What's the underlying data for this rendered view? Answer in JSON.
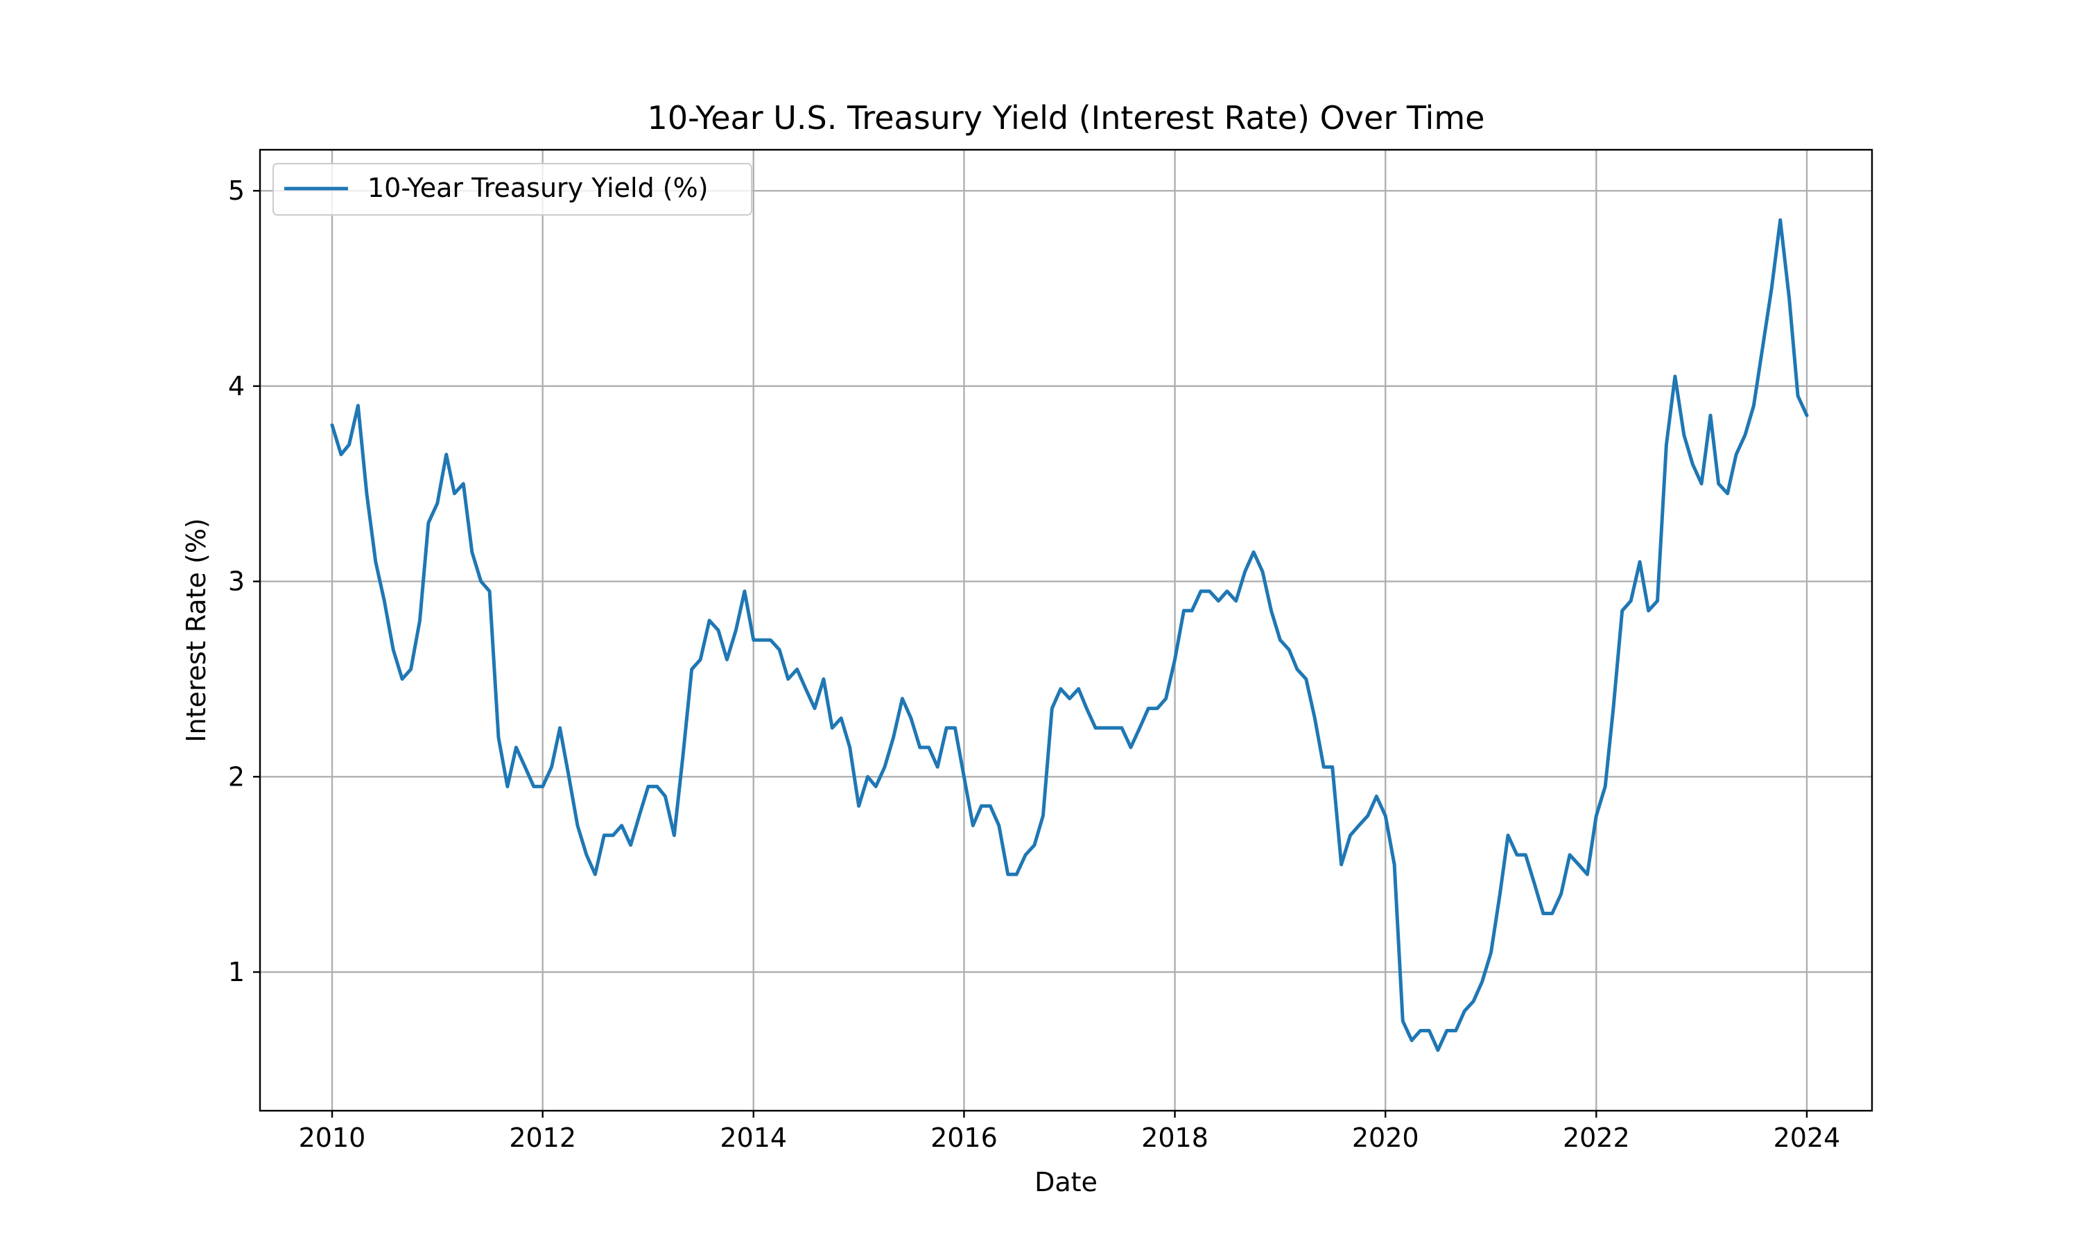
{
  "chart_data": {
    "type": "line",
    "title": "10-Year U.S. Treasury Yield (Interest Rate) Over Time",
    "xlabel": "Date",
    "ylabel": "Interest Rate (%)",
    "x_axis_type": "date",
    "xlim": [
      "2009-04-26",
      "2024-08-14"
    ],
    "ylim": [
      0.29,
      5.21
    ],
    "xticks": [
      "2010",
      "2012",
      "2014",
      "2016",
      "2018",
      "2020",
      "2022",
      "2024"
    ],
    "yticks": [
      "1",
      "2",
      "3",
      "4",
      "5"
    ],
    "grid": true,
    "legend_position": "top-left",
    "series": [
      {
        "name": "10-Year Treasury Yield (%)",
        "color": "#1f77b4",
        "x": [
          "2010-01-01",
          "2010-02-01",
          "2010-03-01",
          "2010-04-01",
          "2010-05-01",
          "2010-06-01",
          "2010-07-01",
          "2010-08-01",
          "2010-09-01",
          "2010-10-01",
          "2010-11-01",
          "2010-12-01",
          "2011-01-01",
          "2011-02-01",
          "2011-03-01",
          "2011-04-01",
          "2011-05-01",
          "2011-06-01",
          "2011-07-01",
          "2011-08-01",
          "2011-09-01",
          "2011-10-01",
          "2011-11-01",
          "2011-12-01",
          "2012-01-01",
          "2012-02-01",
          "2012-03-01",
          "2012-04-01",
          "2012-05-01",
          "2012-06-01",
          "2012-07-01",
          "2012-08-01",
          "2012-09-01",
          "2012-10-01",
          "2012-11-01",
          "2012-12-01",
          "2013-01-01",
          "2013-02-01",
          "2013-03-01",
          "2013-04-01",
          "2013-05-01",
          "2013-06-01",
          "2013-07-01",
          "2013-08-01",
          "2013-09-01",
          "2013-10-01",
          "2013-11-01",
          "2013-12-01",
          "2014-01-01",
          "2014-02-01",
          "2014-03-01",
          "2014-04-01",
          "2014-05-01",
          "2014-06-01",
          "2014-07-01",
          "2014-08-01",
          "2014-09-01",
          "2014-10-01",
          "2014-11-01",
          "2014-12-01",
          "2015-01-01",
          "2015-02-01",
          "2015-03-01",
          "2015-04-01",
          "2015-05-01",
          "2015-06-01",
          "2015-07-01",
          "2015-08-01",
          "2015-09-01",
          "2015-10-01",
          "2015-11-01",
          "2015-12-01",
          "2016-01-01",
          "2016-02-01",
          "2016-03-01",
          "2016-04-01",
          "2016-05-01",
          "2016-06-01",
          "2016-07-01",
          "2016-08-01",
          "2016-09-01",
          "2016-10-01",
          "2016-11-01",
          "2016-12-01",
          "2017-01-01",
          "2017-02-01",
          "2017-03-01",
          "2017-04-01",
          "2017-05-01",
          "2017-06-01",
          "2017-07-01",
          "2017-08-01",
          "2017-09-01",
          "2017-10-01",
          "2017-11-01",
          "2017-12-01",
          "2018-01-01",
          "2018-02-01",
          "2018-03-01",
          "2018-04-01",
          "2018-05-01",
          "2018-06-01",
          "2018-07-01",
          "2018-08-01",
          "2018-09-01",
          "2018-10-01",
          "2018-11-01",
          "2018-12-01",
          "2019-01-01",
          "2019-02-01",
          "2019-03-01",
          "2019-04-01",
          "2019-05-01",
          "2019-06-01",
          "2019-07-01",
          "2019-08-01",
          "2019-09-01",
          "2019-10-01",
          "2019-11-01",
          "2019-12-01",
          "2020-01-01",
          "2020-02-01",
          "2020-03-01",
          "2020-04-01",
          "2020-05-01",
          "2020-06-01",
          "2020-07-01",
          "2020-08-01",
          "2020-09-01",
          "2020-10-01",
          "2020-11-01",
          "2020-12-01",
          "2021-01-01",
          "2021-02-01",
          "2021-03-01",
          "2021-04-01",
          "2021-05-01",
          "2021-06-01",
          "2021-07-01",
          "2021-08-01",
          "2021-09-01",
          "2021-10-01",
          "2021-11-01",
          "2021-12-01",
          "2022-01-01",
          "2022-02-01",
          "2022-03-01",
          "2022-04-01",
          "2022-05-01",
          "2022-06-01",
          "2022-07-01",
          "2022-08-01",
          "2022-09-01",
          "2022-10-01",
          "2022-11-01",
          "2022-12-01",
          "2023-01-01",
          "2023-02-01",
          "2023-03-01",
          "2023-04-01",
          "2023-05-01",
          "2023-06-01",
          "2023-07-01",
          "2023-08-01",
          "2023-09-01",
          "2023-10-01",
          "2023-11-01",
          "2023-12-01",
          "2024-01-01"
        ],
        "y": [
          3.8,
          3.65,
          3.7,
          3.9,
          3.45,
          3.1,
          2.9,
          2.65,
          2.5,
          2.55,
          2.8,
          3.3,
          3.4,
          3.65,
          3.45,
          3.5,
          3.15,
          3.0,
          2.95,
          2.2,
          1.95,
          2.15,
          2.05,
          1.95,
          1.95,
          2.05,
          2.25,
          2.0,
          1.75,
          1.6,
          1.5,
          1.7,
          1.7,
          1.75,
          1.65,
          1.8,
          1.95,
          1.95,
          1.9,
          1.7,
          2.1,
          2.55,
          2.6,
          2.8,
          2.75,
          2.6,
          2.75,
          2.95,
          2.7,
          2.7,
          2.7,
          2.65,
          2.5,
          2.55,
          2.45,
          2.35,
          2.5,
          2.25,
          2.3,
          2.15,
          1.85,
          2.0,
          1.95,
          2.05,
          2.2,
          2.4,
          2.3,
          2.15,
          2.15,
          2.05,
          2.25,
          2.25,
          2.0,
          1.75,
          1.85,
          1.85,
          1.75,
          1.5,
          1.5,
          1.6,
          1.65,
          1.8,
          2.35,
          2.45,
          2.4,
          2.45,
          2.35,
          2.25,
          2.25,
          2.25,
          2.25,
          2.15,
          2.25,
          2.35,
          2.35,
          2.4,
          2.6,
          2.85,
          2.85,
          2.95,
          2.95,
          2.9,
          2.95,
          2.9,
          3.05,
          3.15,
          3.05,
          2.85,
          2.7,
          2.65,
          2.55,
          2.5,
          2.3,
          2.05,
          2.05,
          1.55,
          1.7,
          1.75,
          1.8,
          1.9,
          1.8,
          1.55,
          0.75,
          0.65,
          0.7,
          0.7,
          0.6,
          0.7,
          0.7,
          0.8,
          0.85,
          0.95,
          1.1,
          1.4,
          1.7,
          1.6,
          1.6,
          1.45,
          1.3,
          1.3,
          1.4,
          1.6,
          1.55,
          1.5,
          1.8,
          1.95,
          2.35,
          2.85,
          2.9,
          3.1,
          2.85,
          2.9,
          3.7,
          4.05,
          3.75,
          3.6,
          3.5,
          3.85,
          3.5,
          3.45,
          3.65,
          3.75,
          3.9,
          4.2,
          4.5,
          4.85,
          4.45,
          3.95,
          3.85
        ]
      }
    ]
  }
}
